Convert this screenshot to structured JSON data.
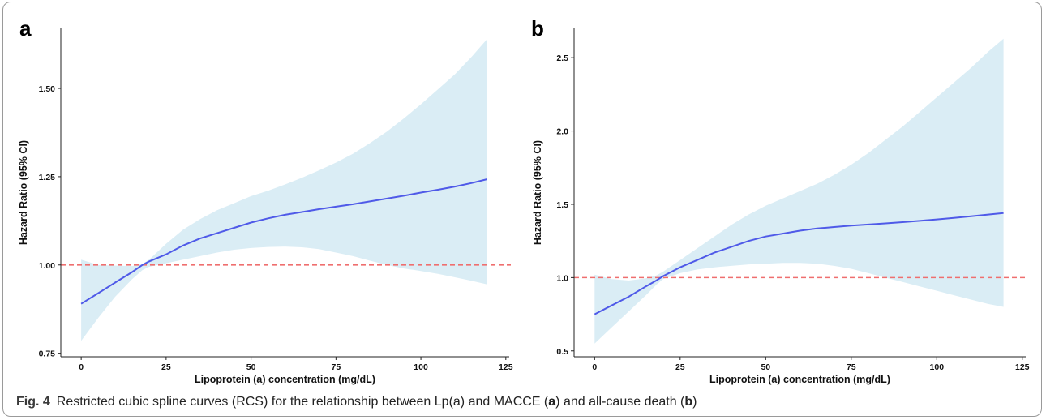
{
  "caption": {
    "label": "Fig. 4",
    "text_1": "Restricted cubic spline curves (RCS) for the relationship between Lp(a) and MACCE (",
    "ref_a": "a",
    "text_2": ") and all-cause death (",
    "ref_b": "b",
    "text_3": ")"
  },
  "colors": {
    "curve": "#4f5ae8",
    "band": "#daedf5",
    "reference": "#ef6f6f",
    "axis": "#222222"
  },
  "chart_data": [
    {
      "panel": "a",
      "type": "line",
      "xlabel": "Lipoprotein (a) concentration (mg/dL)",
      "ylabel": "Hazard Ratio (95% CI)",
      "xlim": [
        -6,
        126
      ],
      "ylim": [
        0.74,
        1.67
      ],
      "xticks": [
        0,
        25,
        50,
        75,
        100,
        125
      ],
      "yticks": [
        0.75,
        1.0,
        1.25,
        1.5
      ],
      "ytick_labels": [
        "0.75",
        "1.00",
        "1.25",
        "1.50"
      ],
      "reference_line": 1.0,
      "grid": false,
      "x": [
        0,
        5,
        10,
        15,
        18,
        20,
        25,
        30,
        35,
        40,
        45,
        50,
        55,
        60,
        65,
        70,
        75,
        80,
        85,
        90,
        95,
        100,
        105,
        110,
        115,
        119.5
      ],
      "hr": [
        0.89,
        0.92,
        0.95,
        0.98,
        1.0,
        1.01,
        1.03,
        1.055,
        1.075,
        1.09,
        1.105,
        1.12,
        1.132,
        1.142,
        1.15,
        1.158,
        1.165,
        1.172,
        1.18,
        1.188,
        1.196,
        1.205,
        1.213,
        1.222,
        1.232,
        1.243
      ],
      "lower": [
        0.785,
        0.85,
        0.91,
        0.96,
        0.985,
        0.995,
        1.005,
        1.015,
        1.025,
        1.035,
        1.043,
        1.048,
        1.051,
        1.052,
        1.05,
        1.045,
        1.035,
        1.025,
        1.012,
        1.0,
        0.99,
        0.983,
        0.975,
        0.965,
        0.955,
        0.945
      ],
      "upper": [
        1.015,
        1.0,
        0.998,
        0.997,
        1.003,
        1.015,
        1.06,
        1.1,
        1.13,
        1.155,
        1.175,
        1.195,
        1.21,
        1.228,
        1.247,
        1.268,
        1.29,
        1.315,
        1.345,
        1.378,
        1.415,
        1.455,
        1.497,
        1.54,
        1.59,
        1.64
      ]
    },
    {
      "panel": "b",
      "type": "line",
      "xlabel": "Lipoprotein (a) concentration (mg/dL)",
      "ylabel": "Hazard Ratio (95% CI)",
      "xlim": [
        -6,
        126
      ],
      "ylim": [
        0.46,
        2.7
      ],
      "xticks": [
        0,
        25,
        50,
        75,
        100,
        125
      ],
      "yticks": [
        0.5,
        1.0,
        1.5,
        2.0,
        2.5
      ],
      "ytick_labels": [
        "0.5",
        "1.0",
        "1.5",
        "2.0",
        "2.5"
      ],
      "reference_line": 1.0,
      "grid": false,
      "x": [
        0,
        5,
        10,
        15,
        18,
        20,
        25,
        30,
        35,
        40,
        45,
        50,
        55,
        60,
        65,
        70,
        75,
        80,
        85,
        90,
        95,
        100,
        105,
        110,
        115,
        119.5
      ],
      "hr": [
        0.75,
        0.81,
        0.87,
        0.94,
        0.98,
        1.01,
        1.07,
        1.12,
        1.17,
        1.21,
        1.25,
        1.28,
        1.3,
        1.32,
        1.335,
        1.345,
        1.355,
        1.362,
        1.37,
        1.378,
        1.387,
        1.397,
        1.407,
        1.418,
        1.43,
        1.44
      ],
      "lower": [
        0.55,
        0.66,
        0.77,
        0.88,
        0.95,
        0.99,
        1.03,
        1.055,
        1.07,
        1.08,
        1.09,
        1.095,
        1.1,
        1.1,
        1.095,
        1.08,
        1.06,
        1.03,
        1.0,
        0.97,
        0.94,
        0.91,
        0.88,
        0.85,
        0.82,
        0.8
      ],
      "upper": [
        1.02,
        0.99,
        0.98,
        0.995,
        1.015,
        1.04,
        1.12,
        1.2,
        1.28,
        1.36,
        1.43,
        1.49,
        1.54,
        1.59,
        1.64,
        1.7,
        1.77,
        1.85,
        1.94,
        2.03,
        2.13,
        2.23,
        2.33,
        2.43,
        2.54,
        2.63
      ]
    }
  ]
}
